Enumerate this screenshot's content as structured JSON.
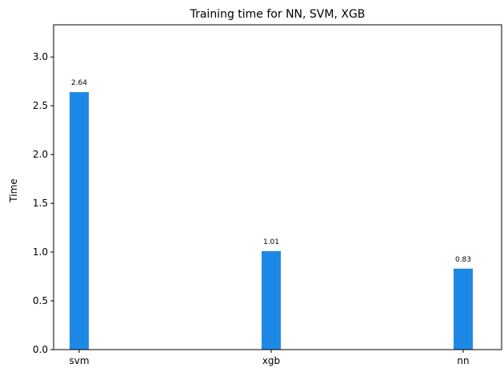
{
  "chart_data": {
    "type": "bar",
    "title": "Training time for NN, SVM, XGB",
    "xlabel": "",
    "ylabel": "Time",
    "categories": [
      "svm",
      "xgb",
      "nn"
    ],
    "values": [
      2.64,
      1.01,
      0.83
    ],
    "data_labels": [
      "2.64",
      "1.01",
      "0.83"
    ],
    "ylim": [
      0,
      3.33
    ],
    "yticks": [
      0.0,
      0.5,
      1.0,
      1.5,
      2.0,
      2.5,
      3.0
    ],
    "ytick_labels": [
      "0.0",
      "0.5",
      "1.0",
      "1.5",
      "2.0",
      "2.5",
      "3.0"
    ],
    "bar_color": "#1e88e5",
    "grid": false,
    "legend": "none"
  }
}
